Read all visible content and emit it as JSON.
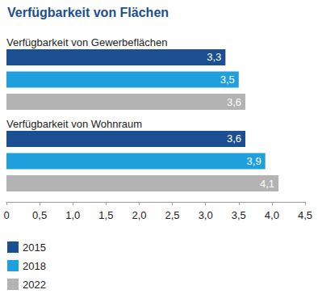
{
  "chart_data": {
    "type": "bar",
    "title": "Verfügbarkeit von Flächen",
    "orientation": "horizontal",
    "categories": [
      "Verfügbarkeit von Gewerbeflächen",
      "Verfügbarkeit von Wohnraum"
    ],
    "series": [
      {
        "name": "2015",
        "color": "#1b4f91",
        "values": [
          3.3,
          3.6
        ],
        "value_labels": [
          "3,3",
          "3,6"
        ]
      },
      {
        "name": "2018",
        "color": "#1fa0dc",
        "values": [
          3.5,
          3.9
        ],
        "value_labels": [
          "3,5",
          "3,9"
        ]
      },
      {
        "name": "2022",
        "color": "#b3b3b3",
        "values": [
          3.6,
          4.1
        ],
        "value_labels": [
          "3,6",
          "4,1"
        ]
      }
    ],
    "xlim": [
      0,
      4.5
    ],
    "xticks": [
      0,
      {
        "value": 0.5,
        "label": "0,5"
      },
      {
        "value": 1,
        "label": "1,0"
      },
      {
        "value": 1.5,
        "label": "1,5"
      },
      {
        "value": 2,
        "label": "2,0"
      },
      {
        "value": 2.5,
        "label": "2,5"
      },
      {
        "value": 3,
        "label": "3,0"
      },
      {
        "value": 3.5,
        "label": "3,5"
      },
      {
        "value": 4,
        "label": "4,0"
      },
      {
        "value": 4.5,
        "label": "4,5"
      }
    ],
    "grid": false,
    "legend": "bottom-left",
    "data_labels": true
  }
}
